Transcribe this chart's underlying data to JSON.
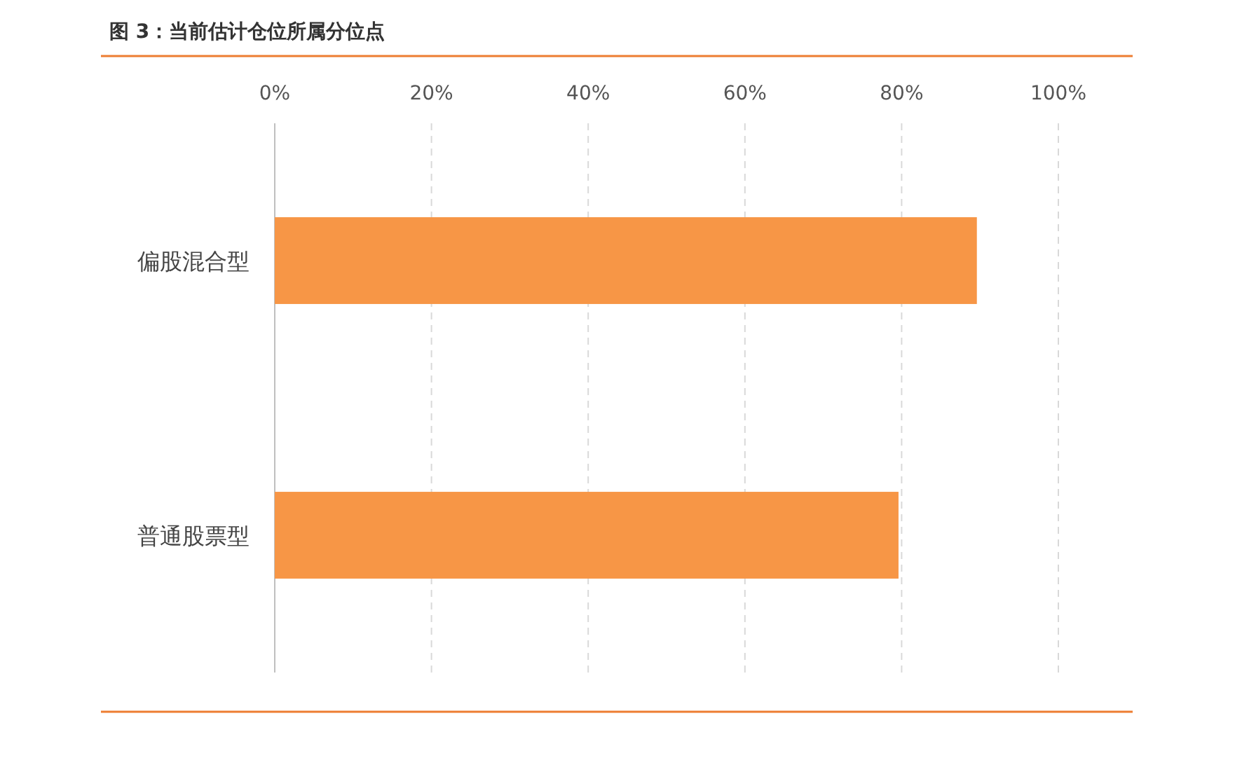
{
  "chart_data": {
    "type": "bar",
    "orientation": "horizontal",
    "title": "图 3：当前估计仓位所属分位点",
    "categories": [
      "偏股混合型",
      "普通股票型"
    ],
    "values": [
      89.6,
      79.6
    ],
    "color": "#f79646",
    "xlim": [
      0,
      100
    ],
    "xticks": [
      {
        "value": 0,
        "label": "0%"
      },
      {
        "value": 20,
        "label": "20%"
      },
      {
        "value": 40,
        "label": "40%"
      },
      {
        "value": 60,
        "label": "60%"
      },
      {
        "value": 80,
        "label": "80%"
      },
      {
        "value": 100,
        "label": "100%"
      }
    ],
    "grid": "x"
  }
}
